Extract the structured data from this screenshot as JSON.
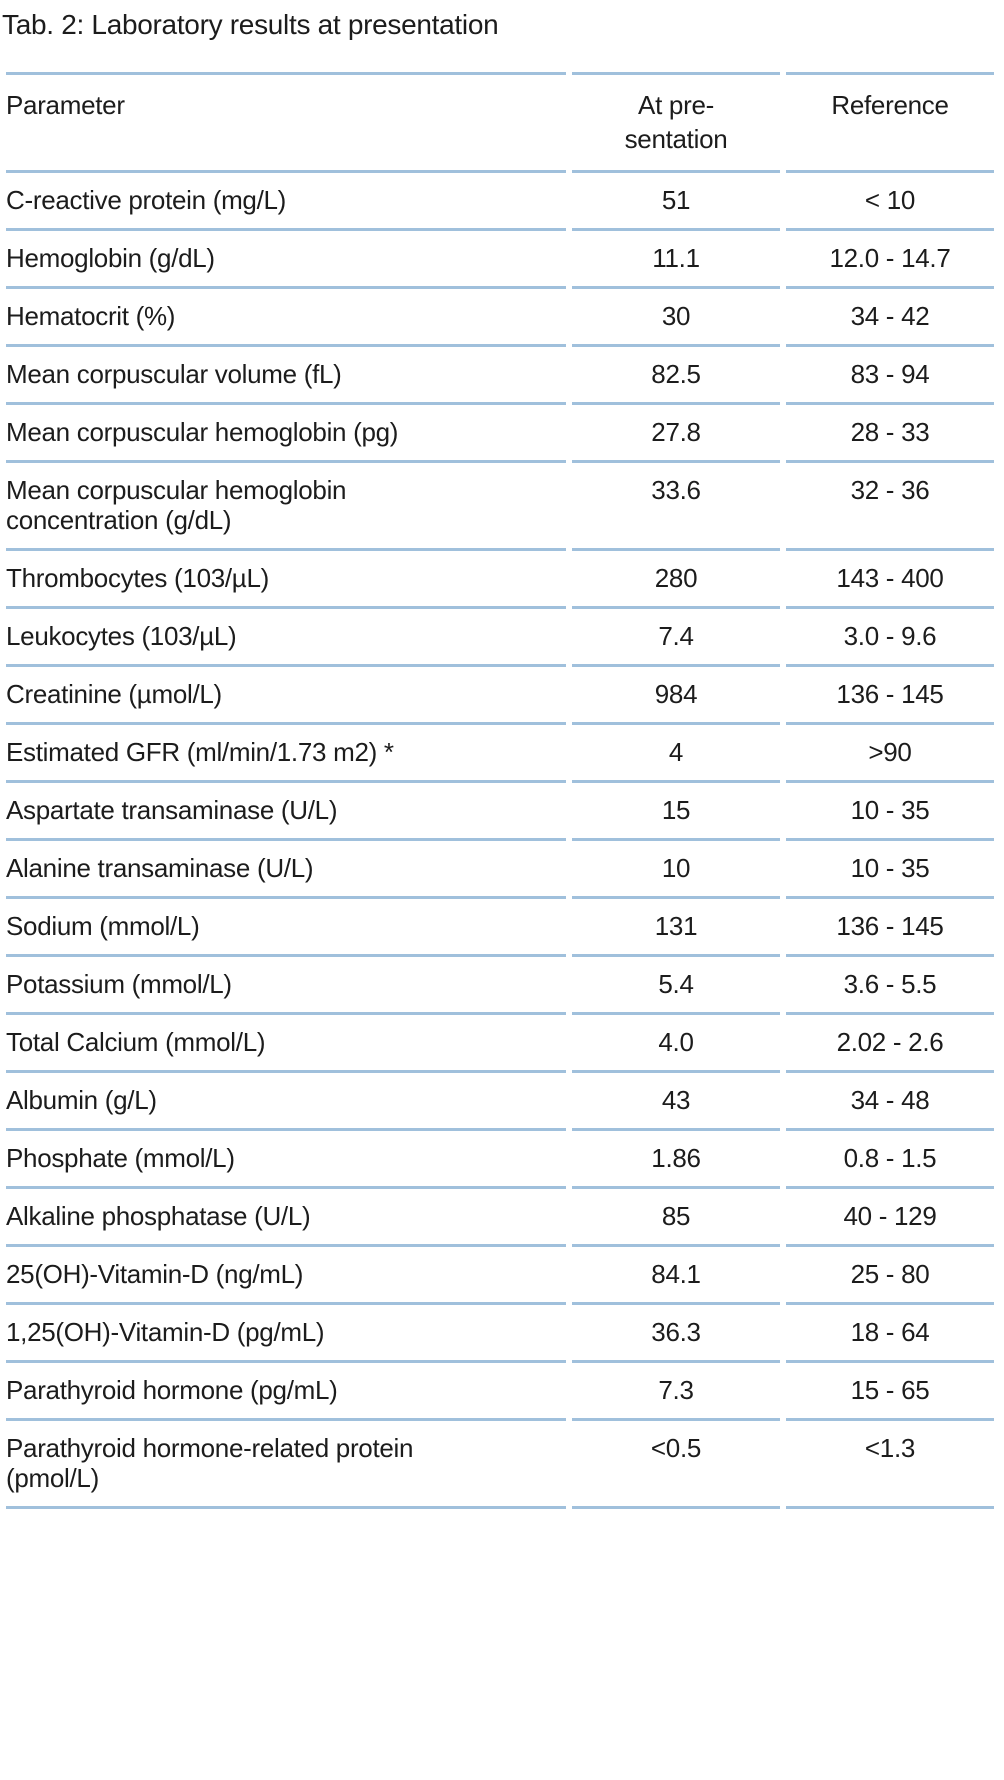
{
  "title": "Tab. 2: Laboratory results at presentation",
  "colors": {
    "rule": "#a0c0dc",
    "text": "#1c1c1c"
  },
  "table": {
    "columns": [
      {
        "label": "Parameter"
      },
      {
        "label": "At pre-\nsentation"
      },
      {
        "label": "Reference"
      }
    ],
    "rows": [
      {
        "parameter": "C-reactive protein (mg/L)",
        "at_presentation": "51",
        "reference": "< 10"
      },
      {
        "parameter": "Hemoglobin (g/dL)",
        "at_presentation": "11.1",
        "reference": "12.0 - 14.7"
      },
      {
        "parameter": "Hematocrit (%)",
        "at_presentation": "30",
        "reference": "34 - 42"
      },
      {
        "parameter": "Mean corpuscular volume (fL)",
        "at_presentation": "82.5",
        "reference": "83 - 94"
      },
      {
        "parameter": "Mean corpuscular hemoglobin (pg)",
        "at_presentation": "27.8",
        "reference": "28 - 33"
      },
      {
        "parameter": "Mean corpuscular hemoglobin\nconcentration (g/dL)",
        "at_presentation": "33.6",
        "reference": "32 - 36"
      },
      {
        "parameter": "Thrombocytes (103/µL)",
        "at_presentation": "280",
        "reference": "143 - 400"
      },
      {
        "parameter": "Leukocytes (103/µL)",
        "at_presentation": "7.4",
        "reference": "3.0 - 9.6"
      },
      {
        "parameter": "Creatinine (µmol/L)",
        "at_presentation": "984",
        "reference": "136 - 145"
      },
      {
        "parameter": "Estimated GFR (ml/min/1.73 m2) *",
        "at_presentation": "4",
        "reference": ">90"
      },
      {
        "parameter": "Aspartate transaminase (U/L)",
        "at_presentation": "15",
        "reference": "10 - 35"
      },
      {
        "parameter": "Alanine transaminase (U/L)",
        "at_presentation": "10",
        "reference": "10 - 35"
      },
      {
        "parameter": "Sodium (mmol/L)",
        "at_presentation": "131",
        "reference": "136 - 145"
      },
      {
        "parameter": "Potassium (mmol/L)",
        "at_presentation": "5.4",
        "reference": "3.6 - 5.5"
      },
      {
        "parameter": "Total Calcium (mmol/L)",
        "at_presentation": "4.0",
        "reference": "2.02 - 2.6"
      },
      {
        "parameter": "Albumin (g/L)",
        "at_presentation": "43",
        "reference": "34 - 48"
      },
      {
        "parameter": "Phosphate (mmol/L)",
        "at_presentation": "1.86",
        "reference": "0.8 - 1.5"
      },
      {
        "parameter": "Alkaline phosphatase (U/L)",
        "at_presentation": "85",
        "reference": "40 - 129"
      },
      {
        "parameter": "25(OH)-Vitamin-D (ng/mL)",
        "at_presentation": "84.1",
        "reference": "25 - 80"
      },
      {
        "parameter": "1,25(OH)-Vitamin-D (pg/mL)",
        "at_presentation": "36.3",
        "reference": "18 - 64"
      },
      {
        "parameter": "Parathyroid hormone (pg/mL)",
        "at_presentation": "7.3",
        "reference": "15 - 65"
      },
      {
        "parameter": "Parathyroid hormone-related protein\n(pmol/L)",
        "at_presentation": "<0.5",
        "reference": "<1.3"
      }
    ]
  }
}
